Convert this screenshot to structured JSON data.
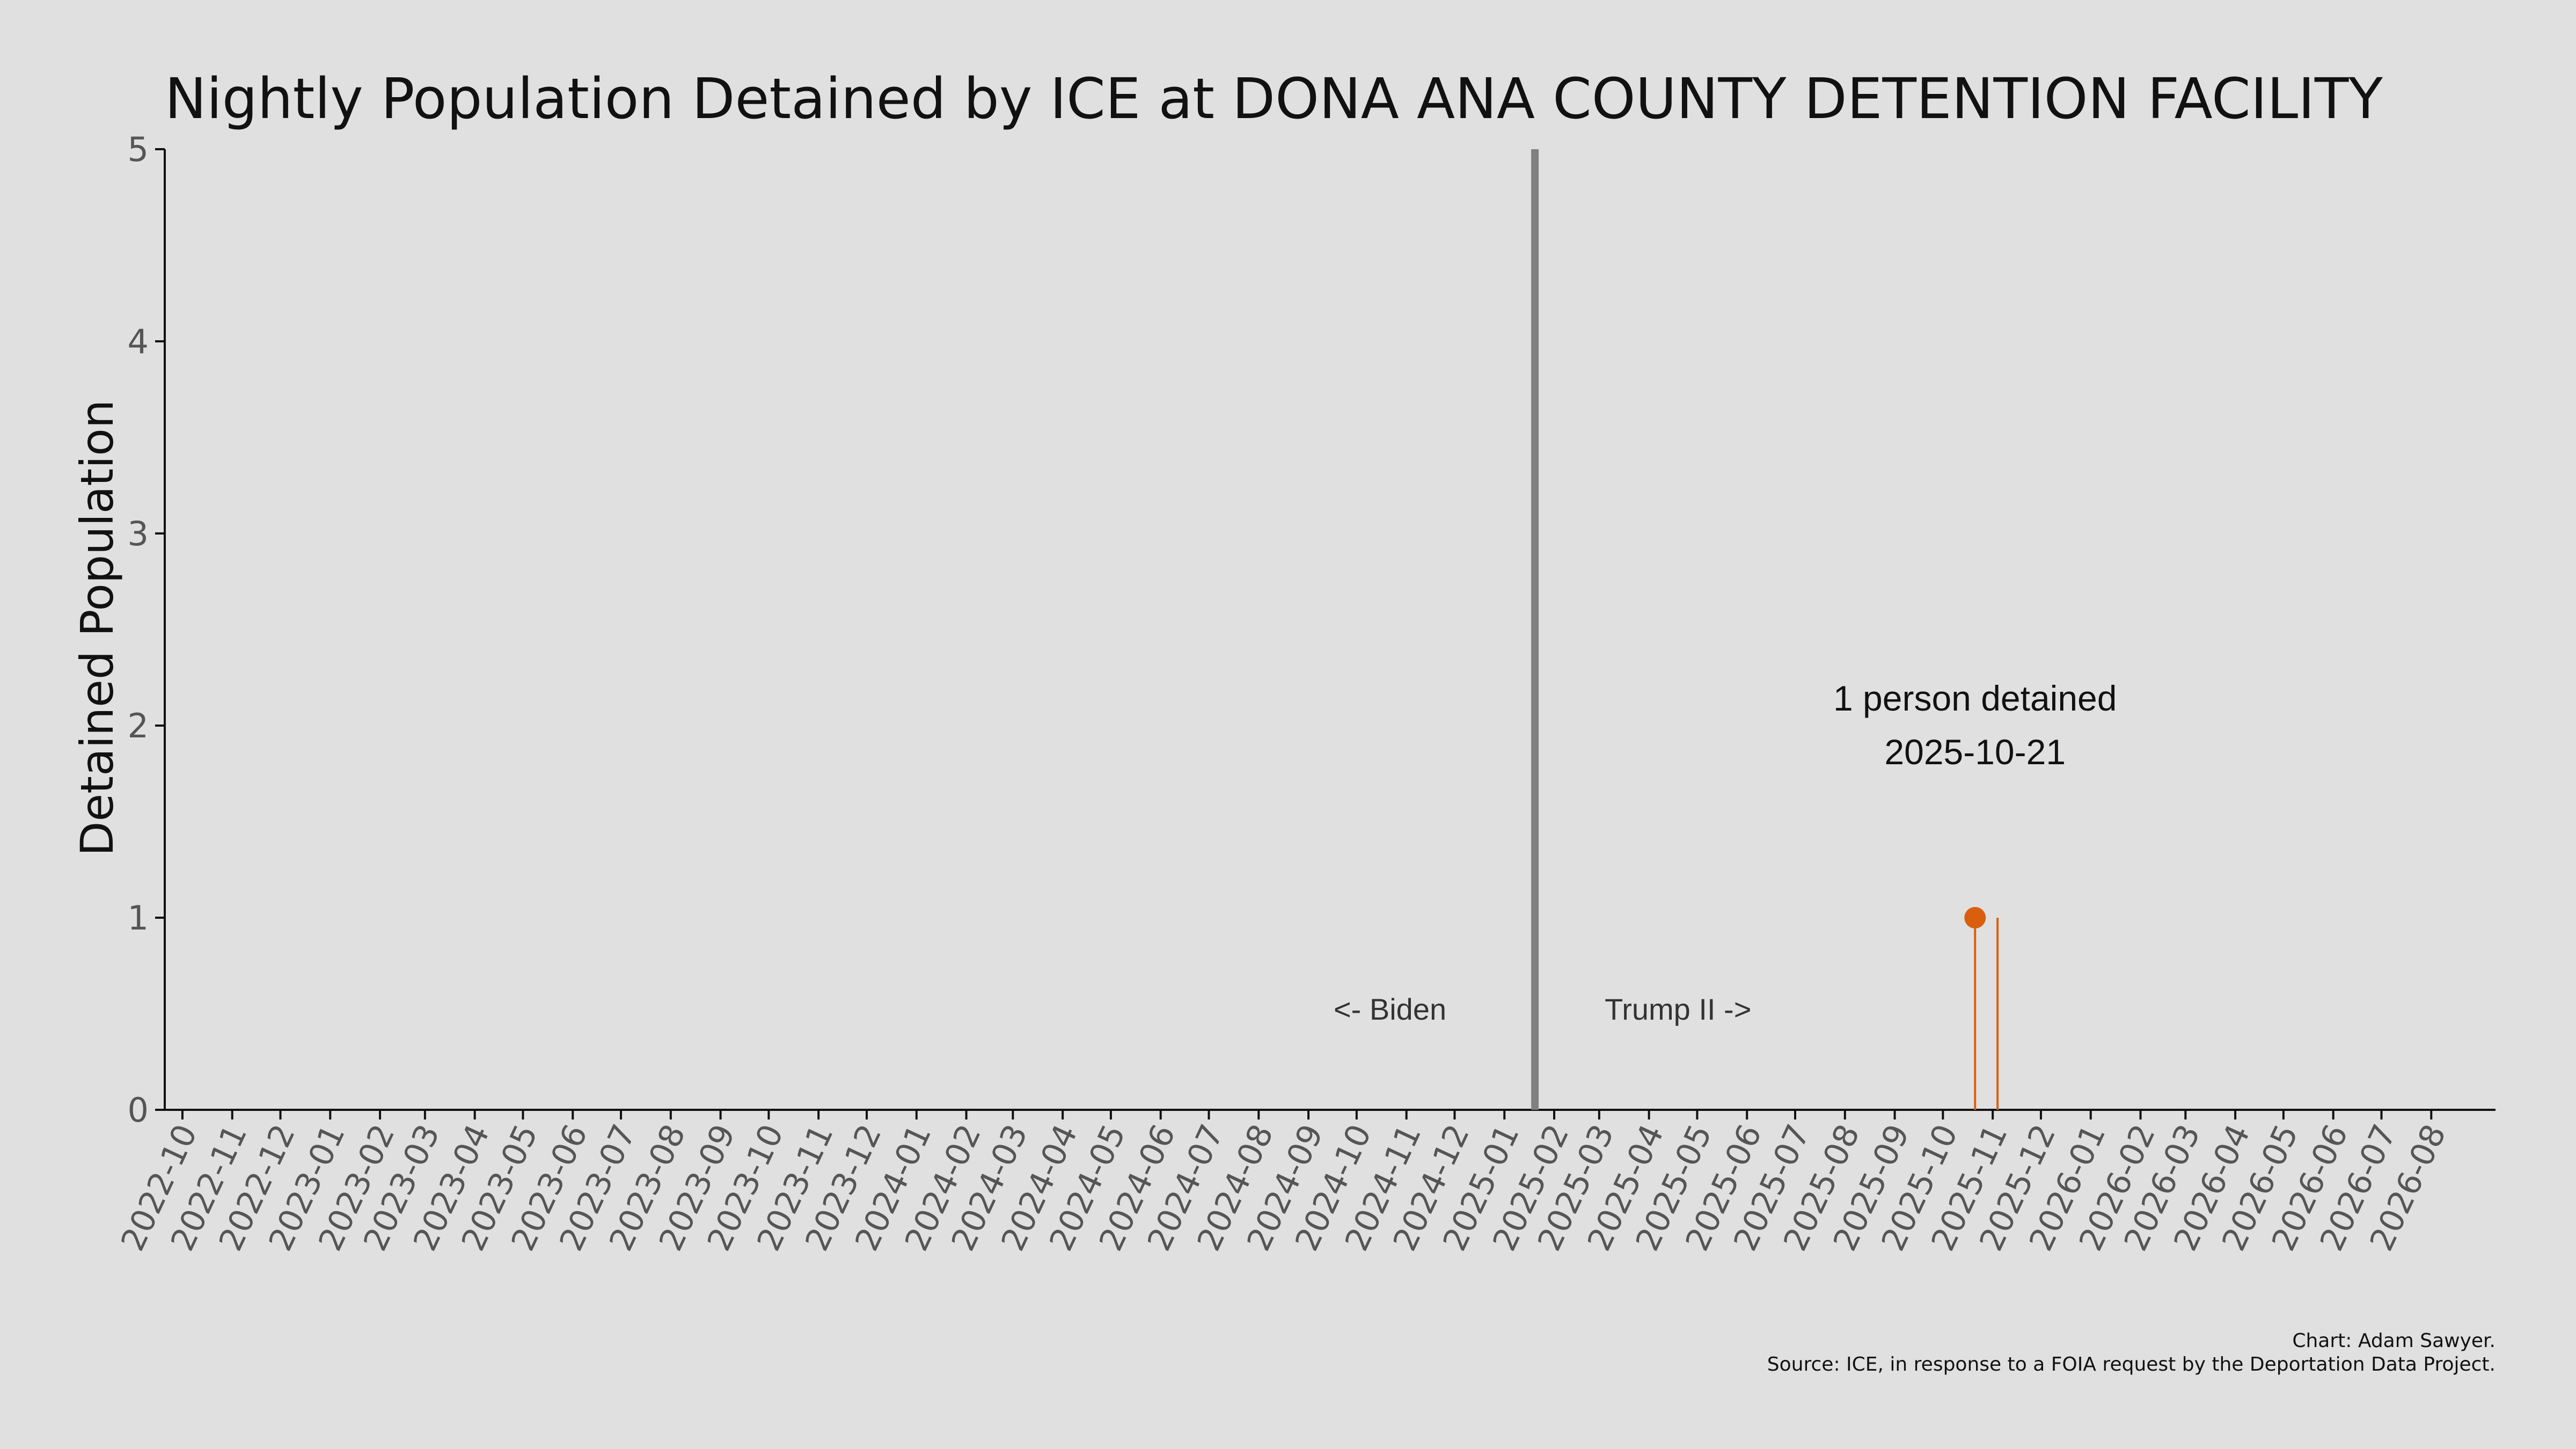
{
  "chart_data": {
    "type": "line",
    "title": "Nightly Population Detained by ICE at DONA ANA COUNTY DETENTION FACILITY",
    "ylabel": "Detained Population",
    "xlabel": "",
    "ylim": [
      0,
      5
    ],
    "yticks": [
      0,
      1,
      2,
      3,
      4,
      5
    ],
    "xlim": [
      "2022-09-20",
      "2026-09-10"
    ],
    "xtick_labels": [
      "2022-10",
      "2022-11",
      "2022-12",
      "2023-01",
      "2023-02",
      "2023-03",
      "2023-04",
      "2023-05",
      "2023-06",
      "2023-07",
      "2023-08",
      "2023-09",
      "2023-10",
      "2023-11",
      "2023-12",
      "2024-01",
      "2024-02",
      "2024-03",
      "2024-04",
      "2024-05",
      "2024-06",
      "2024-07",
      "2024-08",
      "2024-09",
      "2024-10",
      "2024-11",
      "2024-12",
      "2025-01",
      "2025-02",
      "2025-03",
      "2025-04",
      "2025-05",
      "2025-06",
      "2025-07",
      "2025-08",
      "2025-09",
      "2025-10",
      "2025-11",
      "2025-12",
      "2026-01",
      "2026-02",
      "2026-03",
      "2026-04",
      "2026-05",
      "2026-06",
      "2026-07",
      "2026-08"
    ],
    "grid": false,
    "series": [
      {
        "color": "#d95f0e",
        "points": [
          {
            "x": "2025-10-21",
            "y": 1
          },
          {
            "x": "2025-11-04",
            "y": 1
          }
        ]
      }
    ],
    "highlight_point": {
      "x": "2025-10-21",
      "y": 1,
      "color": "#d95f0e"
    },
    "annotation": {
      "line1": "1 person detained",
      "line2": "2025-10-21",
      "x": "2025-10-21",
      "y": 2
    },
    "divider": {
      "x": "2025-01-20",
      "color": "#808080"
    },
    "divider_labels": {
      "left": "<- Biden",
      "right": "Trump II ->"
    },
    "credits": {
      "line1": "Chart: Adam Sawyer.",
      "line2": "Source: ICE, in response to a FOIA request by the Deportation Data Project."
    }
  }
}
